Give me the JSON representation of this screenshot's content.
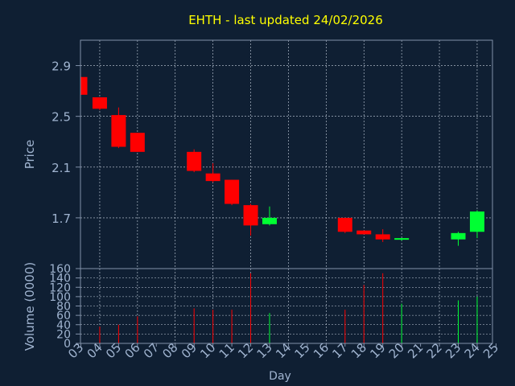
{
  "chart_data": [
    {
      "type": "candlestick",
      "title": "EHTH - last updated 24/02/2026",
      "ylabel": "Price",
      "xlabel": "",
      "ylim": [
        1.3,
        3.1
      ],
      "yticks": [
        "2.9",
        "2.5",
        "2.1",
        "1.7"
      ],
      "grid": true,
      "up_color": "#00ff33",
      "down_color": "#ff0000",
      "candles": [
        {
          "day": 3,
          "open": 2.81,
          "high": 2.81,
          "low": 2.67,
          "close": 2.67
        },
        {
          "day": 4,
          "open": 2.65,
          "high": 2.65,
          "low": 2.55,
          "close": 2.56
        },
        {
          "day": 5,
          "open": 2.51,
          "high": 2.57,
          "low": 2.25,
          "close": 2.26
        },
        {
          "day": 6,
          "open": 2.37,
          "high": 2.37,
          "low": 2.22,
          "close": 2.22
        },
        {
          "day": 9,
          "open": 2.22,
          "high": 2.24,
          "low": 2.06,
          "close": 2.07
        },
        {
          "day": 10,
          "open": 2.05,
          "high": 2.13,
          "low": 1.98,
          "close": 1.99
        },
        {
          "day": 11,
          "open": 2.0,
          "high": 2.0,
          "low": 1.8,
          "close": 1.81
        },
        {
          "day": 12,
          "open": 1.8,
          "high": 1.81,
          "low": 1.56,
          "close": 1.64
        },
        {
          "day": 13,
          "open": 1.65,
          "high": 1.79,
          "low": 1.64,
          "close": 1.7
        },
        {
          "day": 17,
          "open": 1.7,
          "high": 1.7,
          "low": 1.58,
          "close": 1.59
        },
        {
          "day": 18,
          "open": 1.6,
          "high": 1.6,
          "low": 1.57,
          "close": 1.57
        },
        {
          "day": 19,
          "open": 1.57,
          "high": 1.61,
          "low": 1.51,
          "close": 1.53
        },
        {
          "day": 20,
          "open": 1.53,
          "high": 1.54,
          "low": 1.52,
          "close": 1.54
        },
        {
          "day": 23,
          "open": 1.53,
          "high": 1.59,
          "low": 1.48,
          "close": 1.58
        },
        {
          "day": 24,
          "open": 1.59,
          "high": 1.76,
          "low": 1.54,
          "close": 1.75
        }
      ]
    },
    {
      "type": "bar",
      "ylabel": "Volume (0000)",
      "xlabel": "Day",
      "ylim": [
        0,
        160
      ],
      "yticks": [
        "0",
        "20",
        "40",
        "60",
        "80",
        "100",
        "120",
        "140",
        "160"
      ],
      "grid": true,
      "categories": [
        "03",
        "04",
        "05",
        "06",
        "07",
        "08",
        "09",
        "10",
        "11",
        "12",
        "13",
        "14",
        "15",
        "16",
        "17",
        "18",
        "19",
        "20",
        "21",
        "22",
        "23",
        "24",
        "25"
      ],
      "values": [
        0,
        36,
        40,
        58,
        0,
        0,
        75,
        72,
        72,
        150,
        65,
        0,
        0,
        0,
        72,
        125,
        150,
        85,
        0,
        0,
        92,
        100,
        0
      ],
      "colors": {
        "up": "#00ff33",
        "down": "#ff0000"
      }
    }
  ]
}
